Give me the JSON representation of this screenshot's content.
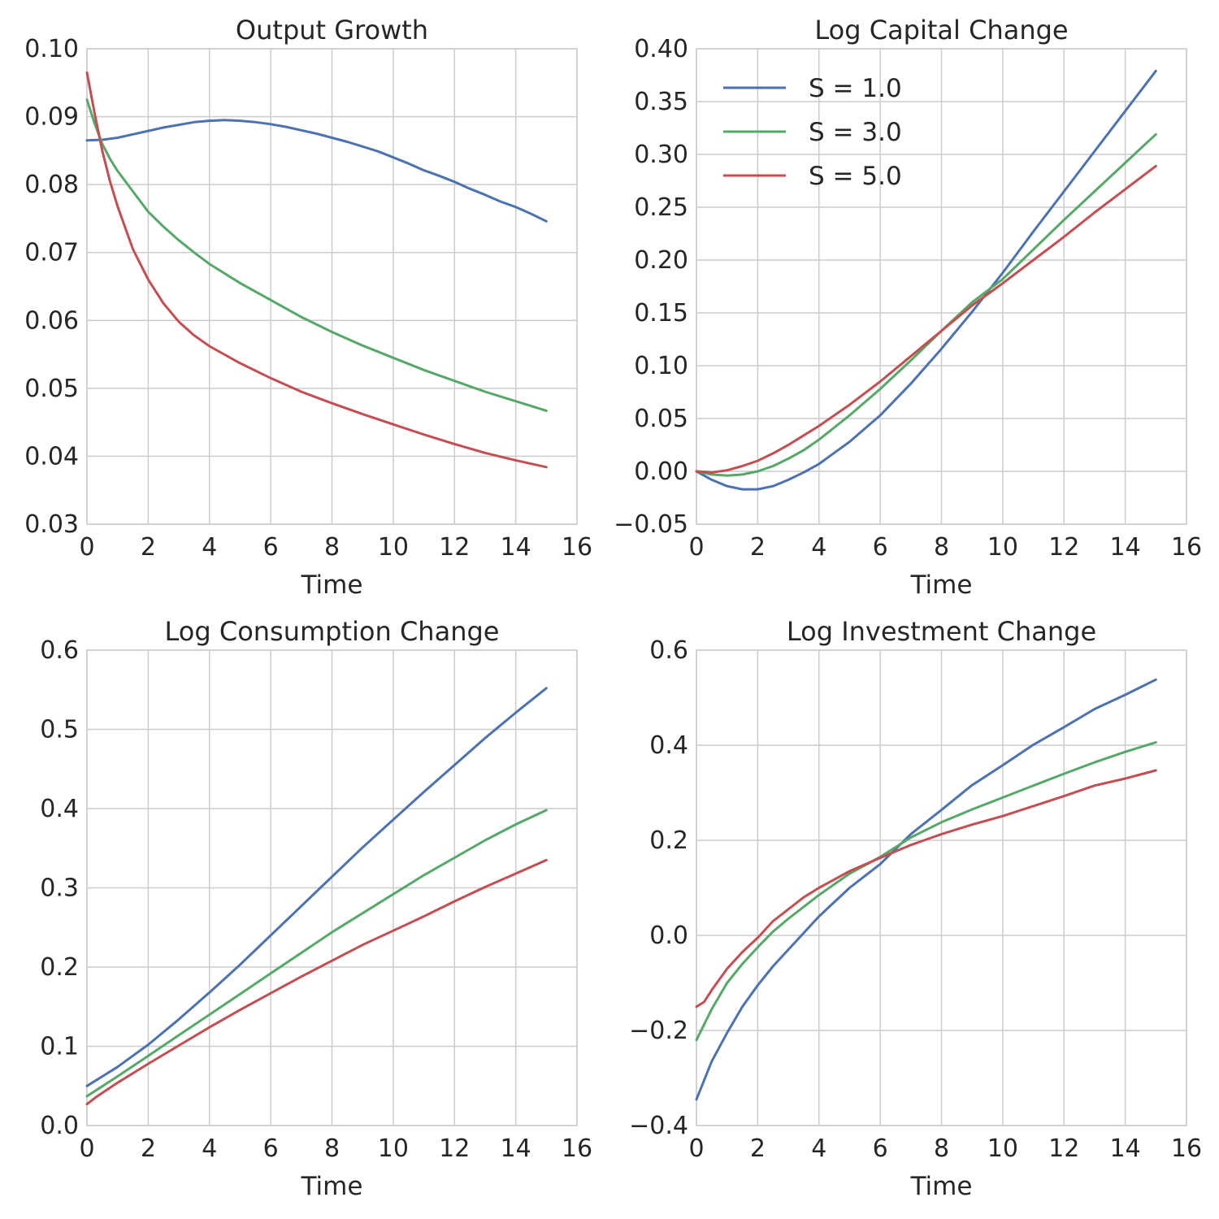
{
  "colors": {
    "blue": "#4c72b0",
    "green": "#55a868",
    "red": "#c44e52",
    "grid": "#cccccc",
    "text": "#262626"
  },
  "chart_data": [
    {
      "type": "line",
      "title": "Output Growth",
      "xlabel": "Time",
      "ylabel": "",
      "xlim": [
        0,
        16
      ],
      "ylim": [
        0.03,
        0.1
      ],
      "xticks": [
        0,
        2,
        4,
        6,
        8,
        10,
        12,
        14,
        16
      ],
      "xtick_labels": [
        "0",
        "2",
        "4",
        "6",
        "8",
        "10",
        "12",
        "14",
        "16"
      ],
      "yticks": [
        0.03,
        0.04,
        0.05,
        0.06,
        0.07,
        0.08,
        0.09,
        0.1
      ],
      "ytick_labels": [
        "0.03",
        "0.04",
        "0.05",
        "0.06",
        "0.07",
        "0.08",
        "0.09",
        "0.10"
      ],
      "grid": true,
      "legend": null,
      "series": [
        {
          "color": "#4c72b0",
          "x": [
            0,
            0.5,
            1,
            1.5,
            2,
            2.5,
            3,
            3.5,
            4,
            4.5,
            5,
            5.5,
            6,
            6.5,
            7,
            7.5,
            8,
            8.5,
            9,
            9.5,
            10,
            10.5,
            11,
            11.5,
            12,
            12.5,
            13,
            13.5,
            14,
            14.5,
            15
          ],
          "y": [
            0.0865,
            0.0866,
            0.0869,
            0.0874,
            0.0879,
            0.0884,
            0.0888,
            0.0892,
            0.0894,
            0.0895,
            0.0894,
            0.0892,
            0.0889,
            0.0885,
            0.088,
            0.0875,
            0.0869,
            0.0863,
            0.0856,
            0.0849,
            0.084,
            0.0831,
            0.0821,
            0.0813,
            0.0804,
            0.0794,
            0.0785,
            0.0775,
            0.0767,
            0.0757,
            0.0746
          ]
        },
        {
          "color": "#55a868",
          "x": [
            0,
            0.25,
            0.5,
            0.75,
            1,
            1.5,
            2,
            2.5,
            3,
            3.5,
            4,
            5,
            6,
            7,
            8,
            9,
            10,
            11,
            12,
            13,
            14,
            15
          ],
          "y": [
            0.0925,
            0.089,
            0.086,
            0.0838,
            0.082,
            0.079,
            0.076,
            0.0738,
            0.0718,
            0.07,
            0.0683,
            0.0655,
            0.063,
            0.0605,
            0.0583,
            0.0563,
            0.0545,
            0.0527,
            0.0511,
            0.0495,
            0.0481,
            0.0467
          ]
        },
        {
          "color": "#c44e52",
          "x": [
            0,
            0.25,
            0.5,
            0.75,
            1,
            1.5,
            2,
            2.5,
            3,
            3.5,
            4,
            5,
            6,
            7,
            8,
            9,
            10,
            11,
            12,
            13,
            14,
            15
          ],
          "y": [
            0.0965,
            0.0905,
            0.085,
            0.0805,
            0.0768,
            0.0705,
            0.066,
            0.0625,
            0.0598,
            0.0578,
            0.0562,
            0.0537,
            0.0515,
            0.0495,
            0.0478,
            0.0462,
            0.0447,
            0.0432,
            0.0418,
            0.0405,
            0.0394,
            0.0384
          ]
        }
      ]
    },
    {
      "type": "line",
      "title": "Log Capital Change",
      "xlabel": "Time",
      "ylabel": "",
      "xlim": [
        0,
        16
      ],
      "ylim": [
        -0.05,
        0.4
      ],
      "xticks": [
        0,
        2,
        4,
        6,
        8,
        10,
        12,
        14,
        16
      ],
      "xtick_labels": [
        "0",
        "2",
        "4",
        "6",
        "8",
        "10",
        "12",
        "14",
        "16"
      ],
      "yticks": [
        -0.05,
        0.0,
        0.05,
        0.1,
        0.15,
        0.2,
        0.25,
        0.3,
        0.35,
        0.4
      ],
      "ytick_labels": [
        "−0.05",
        "0.00",
        "0.05",
        "0.10",
        "0.15",
        "0.20",
        "0.25",
        "0.30",
        "0.35",
        "0.40"
      ],
      "grid": true,
      "legend": {
        "placement": "upper-left",
        "entries": [
          {
            "label": "S = 1.0",
            "color": "#4c72b0"
          },
          {
            "label": "S = 3.0",
            "color": "#55a868"
          },
          {
            "label": "S = 5.0",
            "color": "#c44e52"
          }
        ]
      },
      "series": [
        {
          "name": "S = 1.0",
          "color": "#4c72b0",
          "x": [
            0,
            0.5,
            1,
            1.5,
            2,
            2.5,
            3,
            3.5,
            4,
            5,
            6,
            7,
            8,
            9,
            10,
            11,
            12,
            13,
            14,
            15
          ],
          "y": [
            0.0,
            -0.008,
            -0.014,
            -0.017,
            -0.017,
            -0.014,
            -0.008,
            -0.001,
            0.007,
            0.028,
            0.053,
            0.083,
            0.116,
            0.151,
            0.188,
            0.227,
            0.265,
            0.303,
            0.341,
            0.379
          ]
        },
        {
          "name": "S = 3.0",
          "color": "#55a868",
          "x": [
            0,
            0.5,
            1,
            1.5,
            2,
            2.5,
            3,
            3.5,
            4,
            5,
            6,
            7,
            8,
            9,
            10,
            11,
            12,
            13,
            14,
            15
          ],
          "y": [
            0.0,
            -0.003,
            -0.004,
            -0.003,
            0.0,
            0.005,
            0.012,
            0.02,
            0.03,
            0.053,
            0.078,
            0.105,
            0.133,
            0.16,
            0.182,
            0.21,
            0.238,
            0.265,
            0.292,
            0.319
          ]
        },
        {
          "name": "S = 5.0",
          "color": "#c44e52",
          "x": [
            0,
            0.5,
            1,
            1.5,
            2,
            2.5,
            3,
            3.5,
            4,
            5,
            6,
            7,
            8,
            9,
            10,
            11,
            12,
            13,
            14,
            15
          ],
          "y": [
            0.0,
            -0.001,
            0.001,
            0.005,
            0.01,
            0.017,
            0.025,
            0.034,
            0.043,
            0.063,
            0.085,
            0.109,
            0.133,
            0.157,
            0.178,
            0.2,
            0.222,
            0.245,
            0.267,
            0.289
          ]
        }
      ]
    },
    {
      "type": "line",
      "title": "Log Consumption Change",
      "xlabel": "Time",
      "ylabel": "",
      "xlim": [
        0,
        16
      ],
      "ylim": [
        0.0,
        0.6
      ],
      "xticks": [
        0,
        2,
        4,
        6,
        8,
        10,
        12,
        14,
        16
      ],
      "xtick_labels": [
        "0",
        "2",
        "4",
        "6",
        "8",
        "10",
        "12",
        "14",
        "16"
      ],
      "yticks": [
        0.0,
        0.1,
        0.2,
        0.3,
        0.4,
        0.5,
        0.6
      ],
      "ytick_labels": [
        "0.0",
        "0.1",
        "0.2",
        "0.3",
        "0.4",
        "0.5",
        "0.6"
      ],
      "grid": true,
      "legend": null,
      "series": [
        {
          "color": "#4c72b0",
          "x": [
            0,
            1,
            2,
            3,
            4,
            5,
            6,
            7,
            8,
            9,
            10,
            11,
            12,
            13,
            14,
            15
          ],
          "y": [
            0.05,
            0.074,
            0.102,
            0.134,
            0.168,
            0.203,
            0.24,
            0.277,
            0.314,
            0.351,
            0.386,
            0.421,
            0.455,
            0.489,
            0.521,
            0.552
          ]
        },
        {
          "color": "#55a868",
          "x": [
            0,
            1,
            2,
            3,
            4,
            5,
            6,
            7,
            8,
            9,
            10,
            11,
            12,
            13,
            14,
            15
          ],
          "y": [
            0.037,
            0.062,
            0.088,
            0.114,
            0.14,
            0.166,
            0.192,
            0.218,
            0.244,
            0.268,
            0.292,
            0.316,
            0.338,
            0.36,
            0.38,
            0.398
          ]
        },
        {
          "color": "#c44e52",
          "x": [
            0,
            0.3,
            1,
            2,
            3,
            4,
            5,
            6,
            7,
            8,
            9,
            10,
            11,
            12,
            13,
            14,
            15
          ],
          "y": [
            0.027,
            0.036,
            0.054,
            0.078,
            0.101,
            0.124,
            0.146,
            0.167,
            0.188,
            0.208,
            0.228,
            0.246,
            0.264,
            0.283,
            0.301,
            0.318,
            0.335
          ]
        }
      ]
    },
    {
      "type": "line",
      "title": "Log Investment Change",
      "xlabel": "Time",
      "ylabel": "",
      "xlim": [
        0,
        16
      ],
      "ylim": [
        -0.4,
        0.6
      ],
      "xticks": [
        0,
        2,
        4,
        6,
        8,
        10,
        12,
        14,
        16
      ],
      "xtick_labels": [
        "0",
        "2",
        "4",
        "6",
        "8",
        "10",
        "12",
        "14",
        "16"
      ],
      "yticks": [
        -0.4,
        -0.2,
        0.0,
        0.2,
        0.4,
        0.6
      ],
      "ytick_labels": [
        "−0.4",
        "−0.2",
        "0.0",
        "0.2",
        "0.4",
        "0.6"
      ],
      "grid": true,
      "legend": null,
      "series": [
        {
          "color": "#4c72b0",
          "x": [
            0,
            0.5,
            1,
            1.5,
            2,
            2.5,
            3,
            3.5,
            4,
            5,
            6,
            7,
            8,
            9,
            10,
            11,
            12,
            13,
            14,
            15
          ],
          "y": [
            -0.345,
            -0.265,
            -0.205,
            -0.15,
            -0.105,
            -0.065,
            -0.03,
            0.005,
            0.04,
            0.1,
            0.15,
            0.213,
            0.264,
            0.316,
            0.358,
            0.401,
            0.438,
            0.476,
            0.506,
            0.538
          ]
        },
        {
          "color": "#55a868",
          "x": [
            0,
            0.5,
            1,
            1.5,
            2,
            2.5,
            3,
            3.5,
            4,
            5,
            6,
            7,
            8,
            9,
            10,
            11,
            12,
            13,
            14,
            15
          ],
          "y": [
            -0.22,
            -0.155,
            -0.1,
            -0.06,
            -0.025,
            0.008,
            0.035,
            0.06,
            0.085,
            0.13,
            0.165,
            0.206,
            0.238,
            0.265,
            0.29,
            0.315,
            0.34,
            0.364,
            0.386,
            0.406
          ]
        },
        {
          "color": "#c44e52",
          "x": [
            0,
            0.25,
            0.5,
            1,
            1.5,
            2,
            2.5,
            3,
            3.5,
            4,
            5,
            6,
            7,
            8,
            9,
            10,
            11,
            12,
            13,
            14,
            15
          ],
          "y": [
            -0.15,
            -0.14,
            -0.115,
            -0.07,
            -0.035,
            -0.005,
            0.03,
            0.055,
            0.08,
            0.1,
            0.135,
            0.163,
            0.19,
            0.213,
            0.233,
            0.251,
            0.272,
            0.293,
            0.315,
            0.33,
            0.347
          ]
        }
      ]
    }
  ]
}
